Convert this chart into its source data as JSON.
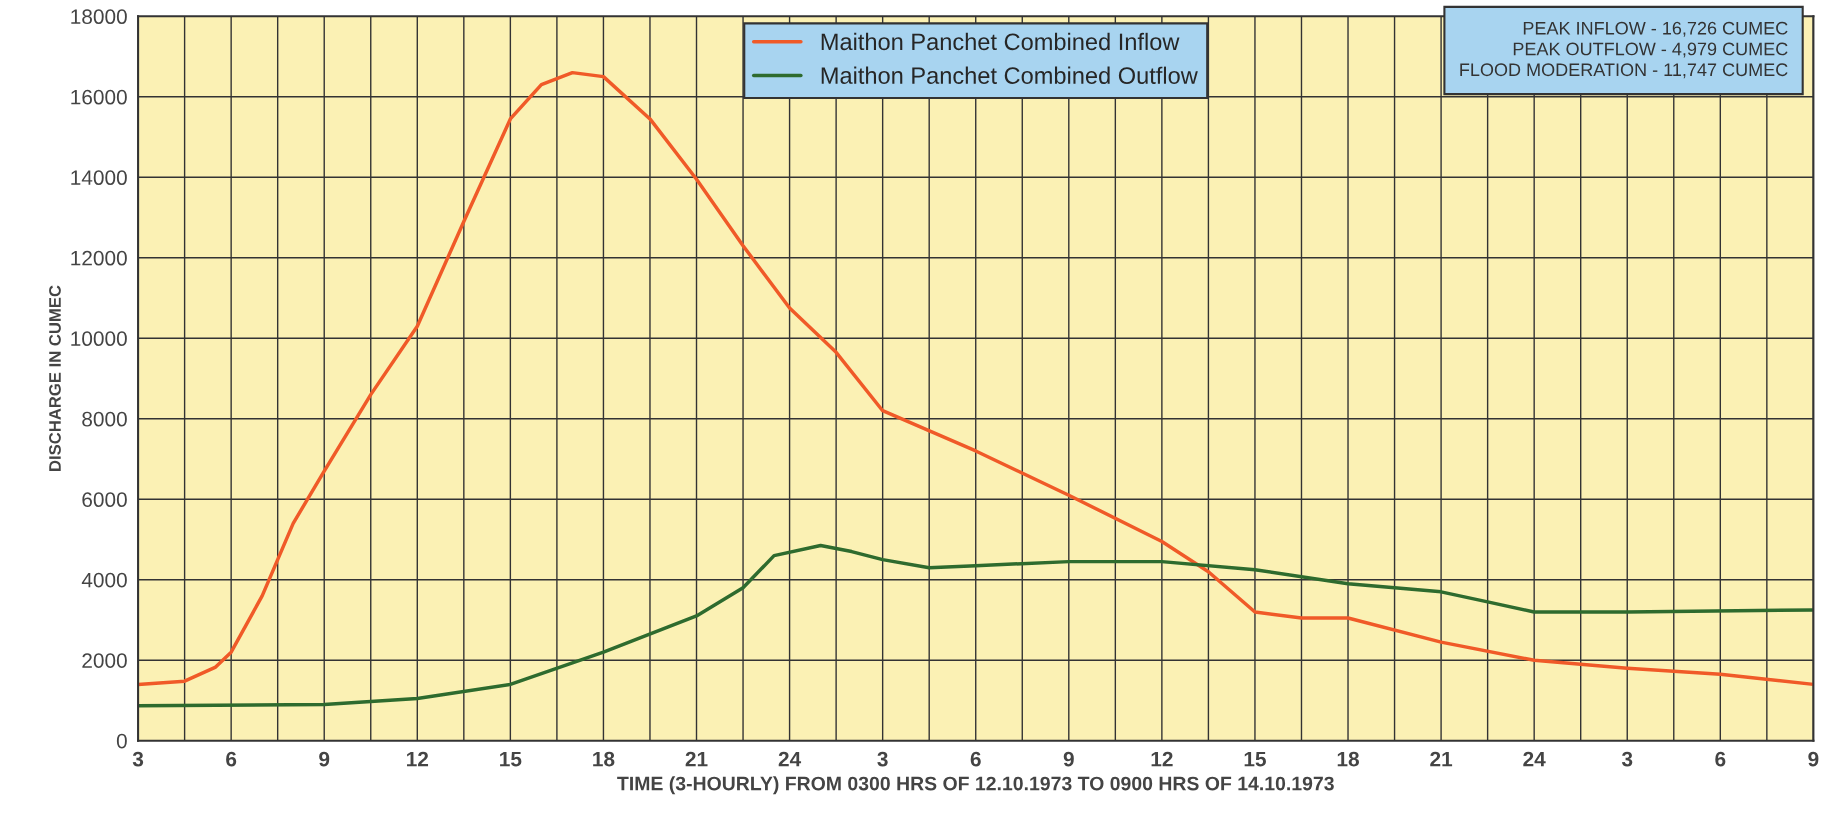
{
  "chart_data": {
    "type": "line",
    "xlabel": "TIME (3-HOURLY) FROM 0300 HRS OF 12.10.1973 TO 0900 HRS OF 14.10.1973",
    "ylabel": "DISCHARGE IN CUMEC",
    "series": [
      {
        "name": "Maithon Panchet Combined Inflow",
        "color": "#f05a28",
        "x": [
          "1973-10-12T03:00",
          "1973-10-12T04:30",
          "1973-10-12T05:30",
          "1973-10-12T06:00",
          "1973-10-12T07:00",
          "1973-10-12T08:00",
          "1973-10-12T09:00",
          "1973-10-12T10:30",
          "1973-10-12T12:00",
          "1973-10-12T13:30",
          "1973-10-12T15:00",
          "1973-10-12T16:00",
          "1973-10-12T17:00",
          "1973-10-12T18:00",
          "1973-10-12T19:30",
          "1973-10-12T21:00",
          "1973-10-12T22:30",
          "1973-10-13T00:00",
          "1973-10-13T01:30",
          "1973-10-13T03:00",
          "1973-10-13T06:00",
          "1973-10-13T09:00",
          "1973-10-13T12:00",
          "1973-10-13T13:30",
          "1973-10-13T15:00",
          "1973-10-13T16:30",
          "1973-10-13T18:00",
          "1973-10-13T21:00",
          "1973-10-14T00:00",
          "1973-10-14T03:00",
          "1973-10-14T06:00",
          "1973-10-14T09:00"
        ],
        "values": [
          1400,
          1480,
          1830,
          2200,
          3600,
          5400,
          6700,
          8600,
          10300,
          12900,
          15450,
          16300,
          16600,
          16500,
          15450,
          13950,
          12300,
          10750,
          9650,
          8200,
          7200,
          6100,
          4950,
          4200,
          3200,
          3050,
          3050,
          2450,
          2000,
          1800,
          1650,
          1400
        ]
      },
      {
        "name": "Maithon Panchet Combined Outflow",
        "color": "#2e6b2e",
        "x": [
          "1973-10-12T03:00",
          "1973-10-12T09:00",
          "1973-10-12T12:00",
          "1973-10-12T15:00",
          "1973-10-12T18:00",
          "1973-10-12T21:00",
          "1973-10-12T22:30",
          "1973-10-12T23:30",
          "1973-10-13T01:00",
          "1973-10-13T02:00",
          "1973-10-13T03:00",
          "1973-10-13T04:30",
          "1973-10-13T06:00",
          "1973-10-13T09:00",
          "1973-10-13T12:00",
          "1973-10-13T15:00",
          "1973-10-13T18:00",
          "1973-10-13T21:00",
          "1973-10-13T22:30",
          "1973-10-14T00:00",
          "1973-10-14T03:00",
          "1973-10-14T09:00"
        ],
        "values": [
          870,
          900,
          1050,
          1400,
          2200,
          3100,
          3800,
          4600,
          4850,
          4700,
          4500,
          4300,
          4350,
          4450,
          4450,
          4250,
          3900,
          3700,
          3450,
          3200,
          3200,
          3250
        ]
      }
    ],
    "xlim": [
      "1973-10-12T03:00",
      "1973-10-14T09:00"
    ],
    "xticks": [
      {
        "value": "1973-10-12T03:00",
        "label": "3"
      },
      {
        "value": "1973-10-12T04:30",
        "label": null
      },
      {
        "value": "1973-10-12T06:00",
        "label": "6"
      },
      {
        "value": "1973-10-12T07:30",
        "label": null
      },
      {
        "value": "1973-10-12T09:00",
        "label": "9"
      },
      {
        "value": "1973-10-12T10:30",
        "label": null
      },
      {
        "value": "1973-10-12T12:00",
        "label": "12"
      },
      {
        "value": "1973-10-12T13:30",
        "label": null
      },
      {
        "value": "1973-10-12T15:00",
        "label": "15"
      },
      {
        "value": "1973-10-12T16:30",
        "label": null
      },
      {
        "value": "1973-10-12T18:00",
        "label": "18"
      },
      {
        "value": "1973-10-12T19:30",
        "label": null
      },
      {
        "value": "1973-10-12T21:00",
        "label": "21"
      },
      {
        "value": "1973-10-12T22:30",
        "label": null
      },
      {
        "value": "1973-10-13T00:00",
        "label": "24"
      },
      {
        "value": "1973-10-13T01:30",
        "label": null
      },
      {
        "value": "1973-10-13T03:00",
        "label": "3"
      },
      {
        "value": "1973-10-13T04:30",
        "label": null
      },
      {
        "value": "1973-10-13T06:00",
        "label": "6"
      },
      {
        "value": "1973-10-13T07:30",
        "label": null
      },
      {
        "value": "1973-10-13T09:00",
        "label": "9"
      },
      {
        "value": "1973-10-13T10:30",
        "label": null
      },
      {
        "value": "1973-10-13T12:00",
        "label": "12"
      },
      {
        "value": "1973-10-13T13:30",
        "label": null
      },
      {
        "value": "1973-10-13T15:00",
        "label": "15"
      },
      {
        "value": "1973-10-13T16:30",
        "label": null
      },
      {
        "value": "1973-10-13T18:00",
        "label": "18"
      },
      {
        "value": "1973-10-13T19:30",
        "label": null
      },
      {
        "value": "1973-10-13T21:00",
        "label": "21"
      },
      {
        "value": "1973-10-13T22:30",
        "label": null
      },
      {
        "value": "1973-10-14T00:00",
        "label": "24"
      },
      {
        "value": "1973-10-14T01:30",
        "label": null
      },
      {
        "value": "1973-10-14T03:00",
        "label": "3"
      },
      {
        "value": "1973-10-14T04:30",
        "label": null
      },
      {
        "value": "1973-10-14T06:00",
        "label": "6"
      },
      {
        "value": "1973-10-14T07:30",
        "label": null
      },
      {
        "value": "1973-10-14T09:00",
        "label": "9"
      }
    ],
    "ylim": [
      0,
      18000
    ],
    "yticks": [
      0,
      2000,
      4000,
      6000,
      8000,
      10000,
      12000,
      14000,
      16000,
      18000
    ],
    "grid": true,
    "legend": "top",
    "annotations": [
      "PEAK INFLOW - 16,726 CUMEC",
      "PEAK OUTFLOW - 4,979 CUMEC",
      "FLOOD MODERATION - 11,747 CUMEC"
    ]
  }
}
